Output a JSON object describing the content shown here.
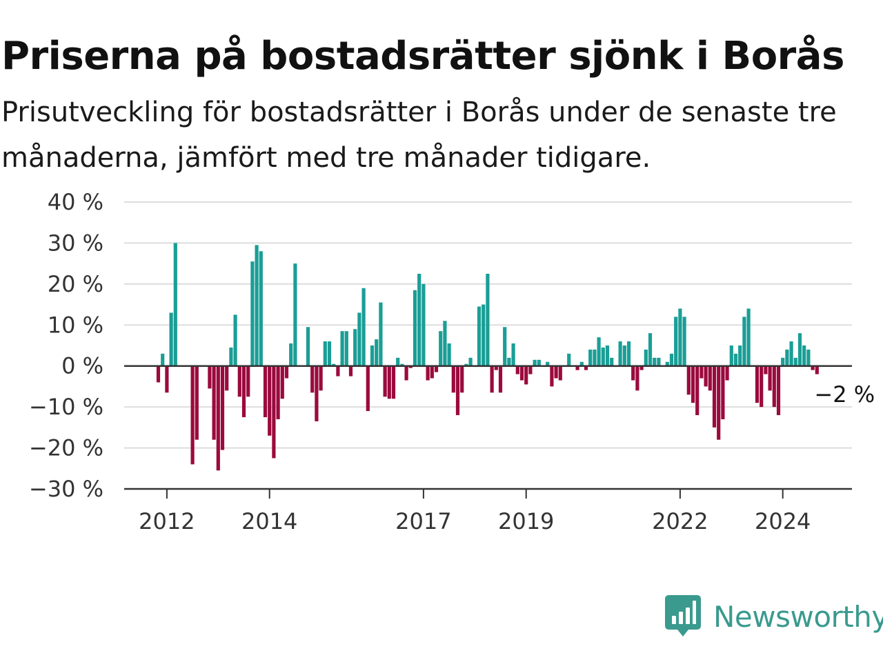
{
  "title": "Priserna på bostadsrätter sjönk i Borås",
  "subtitle": "Prisutveckling för bostadsrätter i Borås under de senaste tre månaderna, jämfört med tre månader tidigare.",
  "logo": {
    "text": "Newsworthy",
    "icon": "bar-chart-speech-bubble-icon",
    "color": "#3a9a8e"
  },
  "colors": {
    "positive": "#1a9e96",
    "negative": "#9b0a3d",
    "grid": "#dddddd",
    "axis": "#333333"
  },
  "chart_data": {
    "type": "bar",
    "title": "Priserna på bostadsrätter sjönk i Borås",
    "subtitle": "Prisutveckling för bostadsrätter i Borås under de senaste tre månaderna, jämfört med tre månader tidigare.",
    "xlabel": "",
    "ylabel": "",
    "unit": "%",
    "ylim": [
      -30,
      40
    ],
    "y_ticks": [
      40,
      30,
      20,
      10,
      0,
      -10,
      -20,
      -30
    ],
    "y_tick_labels": [
      "40 %",
      "30 %",
      "20 %",
      "10 %",
      "0 %",
      "−10 %",
      "−20 %",
      "−30 %"
    ],
    "x_ticks": [
      2012,
      2014,
      2017,
      2019,
      2022,
      2024
    ],
    "x_tick_labels": [
      "2012",
      "2014",
      "2017",
      "2019",
      "2022",
      "2024"
    ],
    "x_start": "2011-11",
    "x_end": "2024-11",
    "grid": true,
    "legend": "none",
    "end_label": "−2 %",
    "values": [
      -4,
      3,
      -6.5,
      13,
      30,
      0,
      0,
      0,
      -24,
      -18,
      0,
      0,
      -5.5,
      -18,
      -25.5,
      -20.5,
      -6,
      4.5,
      12.5,
      -7.5,
      -12.5,
      -7.5,
      25.5,
      29.5,
      28,
      -12.5,
      -17,
      -22.5,
      -13,
      -8,
      -3,
      5.5,
      25,
      0,
      0,
      9.5,
      -6.5,
      -13.5,
      -6,
      6,
      6,
      0.5,
      -2.5,
      8.5,
      8.5,
      -2.5,
      9,
      13,
      19,
      -11,
      5,
      6.5,
      15.5,
      -7.5,
      -8,
      -8,
      2,
      0.5,
      -3.5,
      -0.5,
      18.5,
      22.5,
      20,
      -3.5,
      -3,
      -1.5,
      8.5,
      11,
      5.5,
      -6.5,
      -12,
      -6.5,
      0.5,
      2,
      0,
      14.5,
      15,
      22.5,
      -6.5,
      -1,
      -6.5,
      9.5,
      2,
      5.5,
      -2,
      -3.5,
      -4.5,
      -2,
      1.5,
      1.5,
      0,
      1,
      -5,
      -3,
      -3.5,
      0,
      3,
      0,
      -1,
      1,
      -1,
      4,
      4,
      7,
      4.5,
      5,
      2,
      0,
      6,
      5,
      6,
      -3.5,
      -6,
      -1,
      4,
      8,
      2,
      2,
      0,
      1,
      3,
      12,
      14,
      12,
      -7,
      -9,
      -12,
      -3,
      -5,
      -6,
      -15,
      -18,
      -13,
      -3.5,
      5,
      3,
      5,
      12,
      14,
      0,
      -9,
      -10,
      -2,
      -6,
      -10,
      -12,
      2,
      4,
      6,
      2,
      8,
      5,
      4,
      -1,
      -2
    ]
  }
}
